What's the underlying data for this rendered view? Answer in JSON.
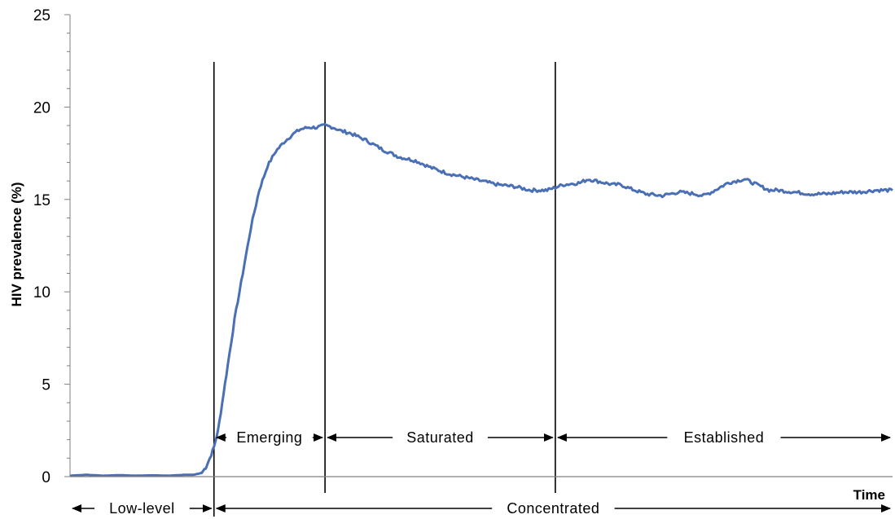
{
  "chart_data": {
    "type": "line",
    "title": "",
    "xlabel": "Time",
    "ylabel": "HIV prevalence (%)",
    "ylim": [
      0,
      25
    ],
    "yticks": [
      0,
      5,
      10,
      15,
      20,
      25
    ],
    "xlim": [
      0,
      100
    ],
    "grid": false,
    "legend": "none",
    "series_color": "#4a6fb5",
    "series": [
      {
        "x": [
          0,
          2,
          4,
          6,
          8,
          10,
          12,
          14,
          15,
          16,
          16.5,
          17,
          17.5,
          18,
          18.5,
          19,
          20,
          21,
          22,
          23,
          24,
          25,
          26,
          27,
          28,
          29,
          30,
          31,
          32,
          33,
          34,
          36,
          38,
          40,
          42,
          44,
          46,
          48,
          50,
          52,
          54,
          56,
          58,
          60,
          62,
          63,
          64,
          65,
          66,
          67,
          68,
          70,
          72,
          74,
          76,
          77,
          78,
          80,
          82,
          84,
          85,
          86,
          88,
          90,
          92,
          94,
          96,
          98,
          100
        ],
        "y": [
          0.05,
          0.1,
          0.05,
          0.08,
          0.05,
          0.07,
          0.05,
          0.1,
          0.1,
          0.2,
          0.5,
          1.0,
          1.6,
          2.5,
          4.0,
          5.5,
          8.5,
          11.0,
          13.5,
          15.5,
          16.8,
          17.6,
          18.1,
          18.5,
          18.8,
          18.9,
          18.9,
          19.0,
          18.9,
          18.7,
          18.6,
          18.2,
          17.7,
          17.3,
          17.1,
          16.7,
          16.4,
          16.2,
          16.0,
          15.8,
          15.7,
          15.5,
          15.5,
          15.8,
          15.9,
          16.1,
          16.0,
          15.9,
          15.8,
          15.8,
          15.6,
          15.3,
          15.2,
          15.4,
          15.3,
          15.2,
          15.4,
          15.9,
          16.1,
          15.7,
          15.5,
          15.5,
          15.4,
          15.3,
          15.3,
          15.4,
          15.4,
          15.5,
          15.5
        ]
      }
    ],
    "phase_dividers_x": [
      17.5,
      31,
      59
    ],
    "phases": [
      {
        "label": "Emerging",
        "x_start": 17.5,
        "x_end": 31,
        "row": "upper"
      },
      {
        "label": "Saturated",
        "x_start": 31,
        "x_end": 59,
        "row": "upper"
      },
      {
        "label": "Established",
        "x_start": 59,
        "x_end": 100,
        "row": "upper"
      },
      {
        "label": "Low-level",
        "x_start": 0,
        "x_end": 17.5,
        "row": "lower"
      },
      {
        "label": "Concentrated",
        "x_start": 17.5,
        "x_end": 100,
        "row": "lower"
      }
    ]
  }
}
